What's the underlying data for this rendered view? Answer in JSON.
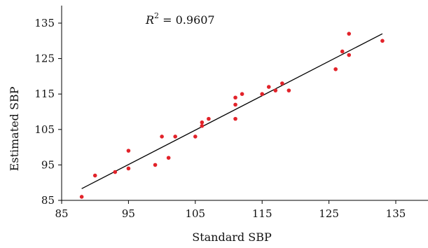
{
  "chart_data": {
    "type": "scatter",
    "title": "",
    "xlabel": "Standard SBP",
    "ylabel": "Estimated SBP",
    "xlim": [
      85,
      140
    ],
    "ylim": [
      85,
      140
    ],
    "xticks": [
      "85",
      "95",
      "105",
      "115",
      "125",
      "135"
    ],
    "yticks": [
      "85",
      "95",
      "105",
      "115",
      "125",
      "135"
    ],
    "annotation": {
      "r_symbol": "R",
      "r_exp": "2",
      "r_value": " = 0.9607"
    },
    "grid": false,
    "legend": "none",
    "point_color": "#e2232a",
    "line_color": "#000000",
    "points": [
      {
        "x": 88,
        "y": 86
      },
      {
        "x": 90,
        "y": 92
      },
      {
        "x": 93,
        "y": 93
      },
      {
        "x": 95,
        "y": 94
      },
      {
        "x": 95,
        "y": 99
      },
      {
        "x": 99,
        "y": 95
      },
      {
        "x": 100,
        "y": 103
      },
      {
        "x": 101,
        "y": 97
      },
      {
        "x": 102,
        "y": 103
      },
      {
        "x": 105,
        "y": 103
      },
      {
        "x": 106,
        "y": 106
      },
      {
        "x": 106,
        "y": 107
      },
      {
        "x": 107,
        "y": 108
      },
      {
        "x": 111,
        "y": 108
      },
      {
        "x": 111,
        "y": 112
      },
      {
        "x": 111,
        "y": 114
      },
      {
        "x": 112,
        "y": 115
      },
      {
        "x": 115,
        "y": 115
      },
      {
        "x": 116,
        "y": 117
      },
      {
        "x": 117,
        "y": 116
      },
      {
        "x": 118,
        "y": 118
      },
      {
        "x": 119,
        "y": 116
      },
      {
        "x": 126,
        "y": 122
      },
      {
        "x": 127,
        "y": 127
      },
      {
        "x": 128,
        "y": 126
      },
      {
        "x": 128,
        "y": 132
      },
      {
        "x": 133,
        "y": 130
      }
    ],
    "fit_line": {
      "x1": 88,
      "y1": 88.3,
      "x2": 133,
      "y2": 132
    }
  }
}
